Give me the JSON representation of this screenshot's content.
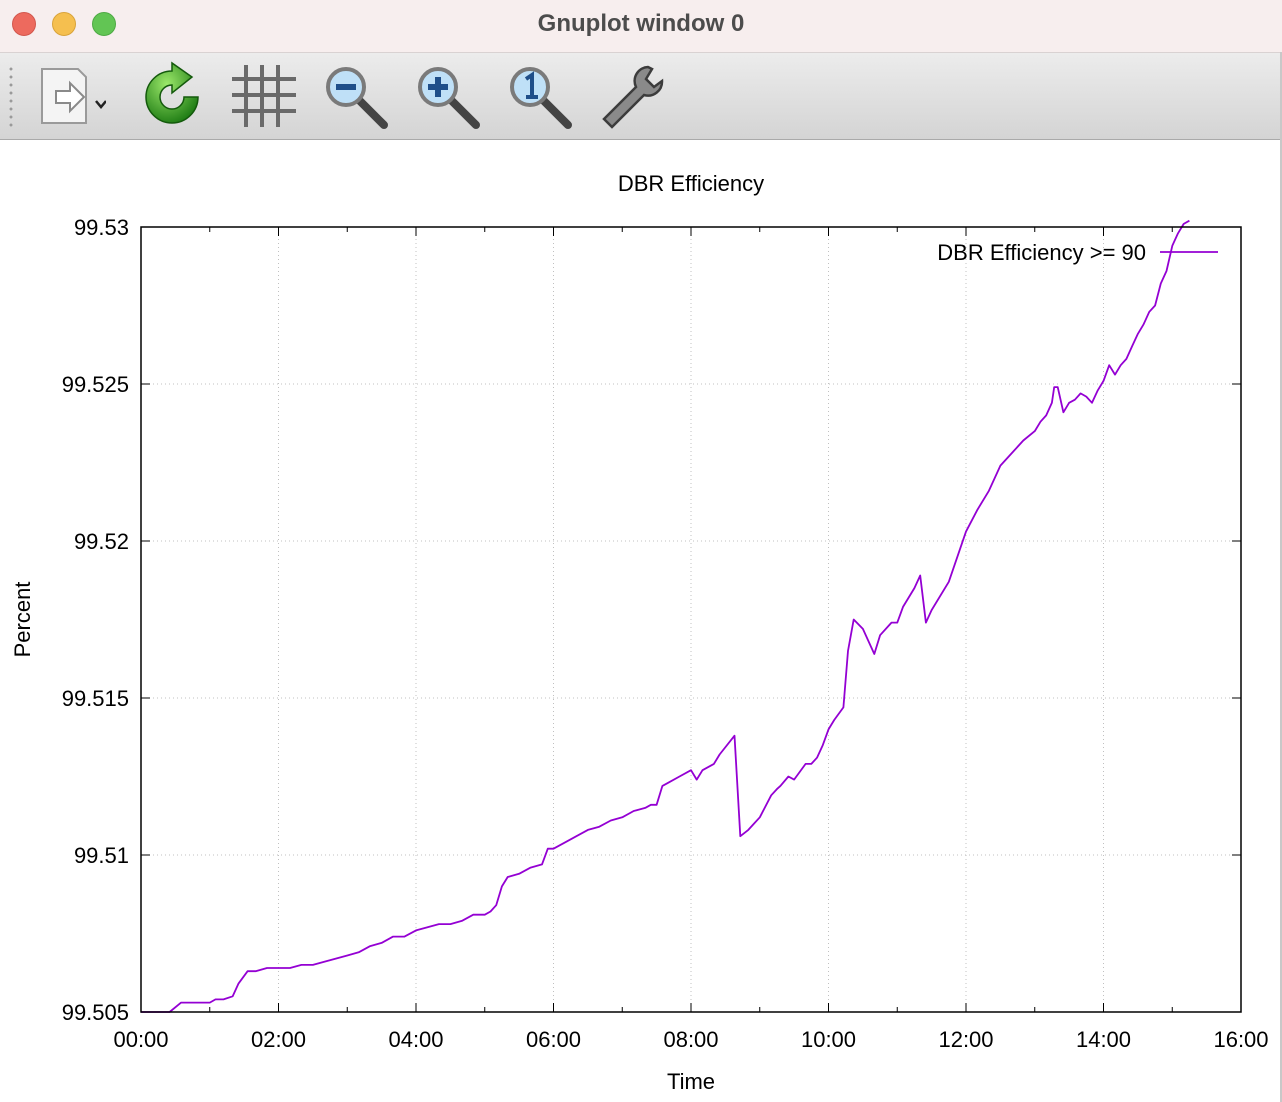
{
  "window": {
    "title": "Gnuplot window 0"
  },
  "toolbar": {
    "buttons": [
      {
        "name": "export",
        "icon": "export-icon"
      },
      {
        "name": "replot",
        "icon": "refresh-icon"
      },
      {
        "name": "grid",
        "icon": "grid-icon"
      },
      {
        "name": "zoom-out",
        "icon": "zoom-out-icon"
      },
      {
        "name": "zoom-in",
        "icon": "zoom-in-icon"
      },
      {
        "name": "zoom-reset",
        "icon": "zoom-reset-icon"
      },
      {
        "name": "settings",
        "icon": "wrench-icon"
      }
    ]
  },
  "colors": {
    "series": "#9400d3",
    "grid": "#c0c0c0",
    "axis": "#000000"
  },
  "chart_data": {
    "type": "line",
    "title": "DBR Efficiency",
    "xlabel": "Time",
    "ylabel": "Percent",
    "xlim": [
      "00:00",
      "16:00"
    ],
    "ylim": [
      99.505,
      99.53
    ],
    "xticks": [
      "00:00",
      "02:00",
      "04:00",
      "06:00",
      "08:00",
      "10:00",
      "12:00",
      "14:00",
      "16:00"
    ],
    "yticks": [
      "99.505",
      "99.51",
      "99.515",
      "99.52",
      "99.525",
      "99.53"
    ],
    "grid": true,
    "legend_position": "top-right",
    "series": [
      {
        "name": "DBR Efficiency >= 90",
        "x": [
          "00:00",
          "00:25",
          "00:35",
          "01:00",
          "01:05",
          "01:12",
          "01:20",
          "01:25",
          "01:33",
          "01:40",
          "01:50",
          "02:00",
          "02:10",
          "02:20",
          "02:30",
          "02:40",
          "02:50",
          "03:00",
          "03:10",
          "03:20",
          "03:30",
          "03:40",
          "03:50",
          "04:00",
          "04:10",
          "04:20",
          "04:30",
          "04:40",
          "04:50",
          "05:00",
          "05:05",
          "05:10",
          "05:15",
          "05:20",
          "05:30",
          "05:40",
          "05:50",
          "05:55",
          "06:00",
          "06:10",
          "06:20",
          "06:30",
          "06:40",
          "06:50",
          "07:00",
          "07:10",
          "07:20",
          "07:25",
          "07:30",
          "07:35",
          "07:40",
          "07:50",
          "08:00",
          "08:05",
          "08:10",
          "08:20",
          "08:25",
          "08:38",
          "08:43",
          "08:50",
          "08:55",
          "09:00",
          "09:10",
          "09:15",
          "09:18",
          "09:25",
          "09:30",
          "09:40",
          "09:45",
          "09:50",
          "09:55",
          "10:00",
          "10:05",
          "10:13",
          "10:17",
          "10:22",
          "10:30",
          "10:40",
          "10:45",
          "10:55",
          "11:00",
          "11:05",
          "11:10",
          "11:15",
          "11:20",
          "11:25",
          "11:30",
          "11:45",
          "12:00",
          "12:10",
          "12:20",
          "12:30",
          "12:40",
          "12:50",
          "13:00",
          "13:05",
          "13:10",
          "13:15",
          "13:17",
          "13:20",
          "13:25",
          "13:30",
          "13:35",
          "13:40",
          "13:45",
          "13:50",
          "13:55",
          "14:00",
          "14:05",
          "14:10",
          "14:15",
          "14:20",
          "14:25",
          "14:30",
          "14:35",
          "14:40",
          "14:45",
          "14:50",
          "14:55",
          "15:00",
          "15:05",
          "15:10",
          "15:15"
        ],
        "values": [
          99.505,
          99.505,
          99.5053,
          99.5053,
          99.5054,
          99.5054,
          99.5055,
          99.5059,
          99.5063,
          99.5063,
          99.5064,
          99.5064,
          99.5064,
          99.5065,
          99.5065,
          99.5066,
          99.5067,
          99.5068,
          99.5069,
          99.5071,
          99.5072,
          99.5074,
          99.5074,
          99.5076,
          99.5077,
          99.5078,
          99.5078,
          99.5079,
          99.5081,
          99.5081,
          99.5082,
          99.5084,
          99.509,
          99.5093,
          99.5094,
          99.5096,
          99.5097,
          99.5102,
          99.5102,
          99.5104,
          99.5106,
          99.5108,
          99.5109,
          99.5111,
          99.5112,
          99.5114,
          99.5115,
          99.5116,
          99.5116,
          99.5122,
          99.5123,
          99.5125,
          99.5127,
          99.5124,
          99.5127,
          99.5129,
          99.5132,
          99.5138,
          99.5106,
          99.5108,
          99.511,
          99.5112,
          99.5119,
          99.5121,
          99.5122,
          99.5125,
          99.5124,
          99.5129,
          99.5129,
          99.5131,
          99.5135,
          99.514,
          99.5143,
          99.5147,
          99.5165,
          99.5175,
          99.5172,
          99.5164,
          99.517,
          99.5174,
          99.5174,
          99.5179,
          99.5182,
          99.5185,
          99.5189,
          99.5174,
          99.5178,
          99.5187,
          99.5203,
          99.521,
          99.5216,
          99.5224,
          99.5228,
          99.5232,
          99.5235,
          99.5238,
          99.524,
          99.5244,
          99.5249,
          99.5249,
          99.5241,
          99.5244,
          99.5245,
          99.5247,
          99.5246,
          99.5244,
          99.5248,
          99.5251,
          99.5256,
          99.5253,
          99.5256,
          99.5258,
          99.5262,
          99.5266,
          99.5269,
          99.5273,
          99.5275,
          99.5282,
          99.5286,
          99.5294,
          99.5298,
          99.5301,
          99.5302
        ]
      }
    ]
  }
}
